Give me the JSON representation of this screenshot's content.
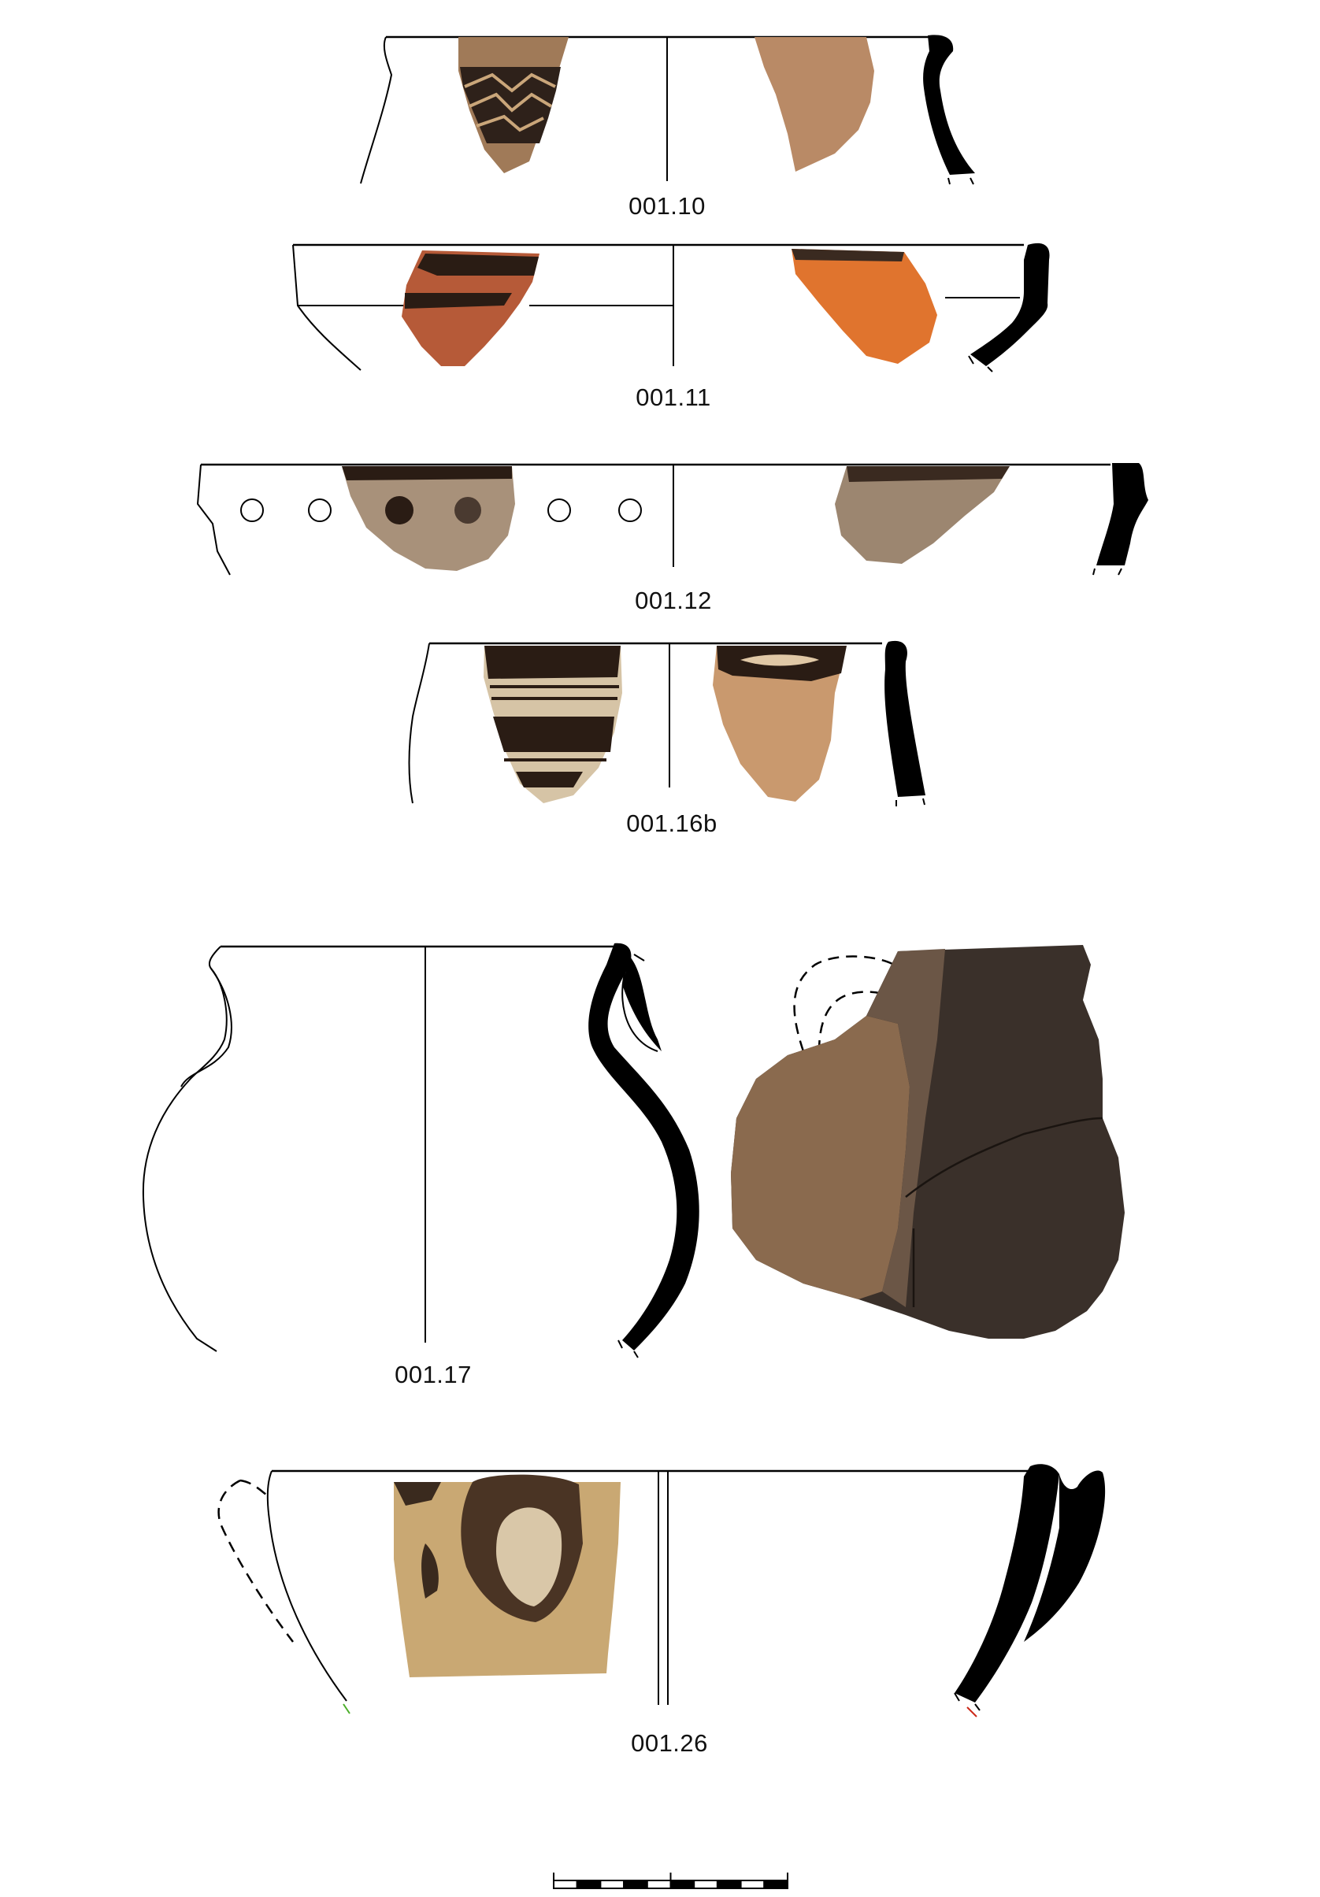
{
  "plate": {
    "background": "#ffffff",
    "line_color": "#000000",
    "section_fill": "#000000",
    "catalogue_labels": [
      "001.10",
      "001.11",
      "001.12",
      "001.16b",
      "001.17",
      "001.26"
    ]
  },
  "colors": {
    "sherd_light_clay": "#b98a66",
    "sherd_red_clay": "#c06a3f",
    "sherd_orange_slip": "#e0742e",
    "sherd_grey_clay": "#9c8670",
    "sherd_buff": "#d2b07c",
    "painted_dark": "#2a1c14",
    "burnt_dark": "#3a302a"
  },
  "scale_bar": {
    "segments": 10,
    "icon": "scale-bar-icon"
  }
}
